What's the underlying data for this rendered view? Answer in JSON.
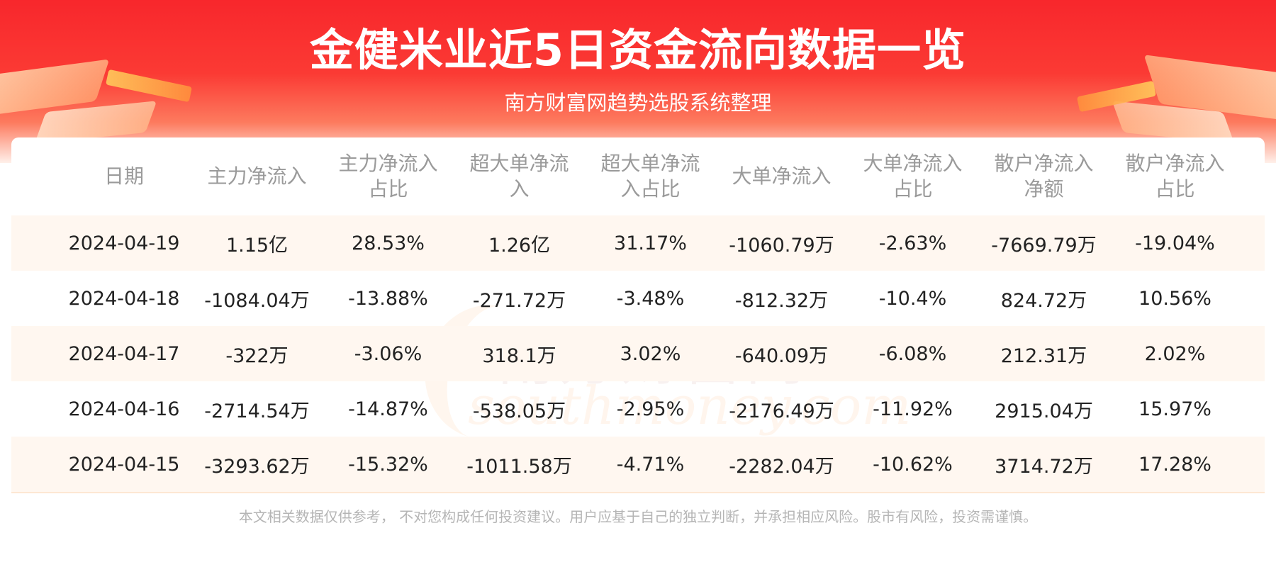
{
  "header": {
    "title": "金健米业近5日资金流向数据一览",
    "subtitle": "南方财富网趋势选股系统整理"
  },
  "table": {
    "columns": [
      "日期",
      "主力净流入",
      "主力净流入占比",
      "超大单净流入",
      "超大单净流入占比",
      "大单净流入",
      "大单净流入占比",
      "散户净流入净额",
      "散户净流入占比"
    ],
    "column_lines": [
      [
        "日期"
      ],
      [
        "主力净流入"
      ],
      [
        "主力净流入",
        "占比"
      ],
      [
        "超大单净流",
        "入"
      ],
      [
        "超大单净流",
        "入占比"
      ],
      [
        "大单净流入"
      ],
      [
        "大单净流入",
        "占比"
      ],
      [
        "散户净流入",
        "净额"
      ],
      [
        "散户净流入",
        "占比"
      ]
    ],
    "rows": [
      [
        "2024-04-19",
        "1.15亿",
        "28.53%",
        "1.26亿",
        "31.17%",
        "-1060.79万",
        "-2.63%",
        "-7669.79万",
        "-19.04%"
      ],
      [
        "2024-04-18",
        "-1084.04万",
        "-13.88%",
        "-271.72万",
        "-3.48%",
        "-812.32万",
        "-10.4%",
        "824.72万",
        "10.56%"
      ],
      [
        "2024-04-17",
        "-322万",
        "-3.06%",
        "318.1万",
        "3.02%",
        "-640.09万",
        "-6.08%",
        "212.31万",
        "2.02%"
      ],
      [
        "2024-04-16",
        "-2714.54万",
        "-14.87%",
        "-538.05万",
        "-2.95%",
        "-2176.49万",
        "-11.92%",
        "2915.04万",
        "15.97%"
      ],
      [
        "2024-04-15",
        "-3293.62万",
        "-15.32%",
        "-1011.58万",
        "-4.71%",
        "-2282.04万",
        "-10.62%",
        "3714.72万",
        "17.28%"
      ]
    ]
  },
  "watermark": {
    "cn": "南方财富网",
    "en": "southmoney.com"
  },
  "footer": {
    "disclaimer": "本文相关数据仅供参考， 不对您构成任何投资建议。用户应基于自己的独立判断，并承担相应风险。股市有风险，投资需谨慎。"
  },
  "colors": {
    "header_red": "#f8272c",
    "row_shade": "#fff7f0",
    "header_text": "#9a9a9a"
  }
}
